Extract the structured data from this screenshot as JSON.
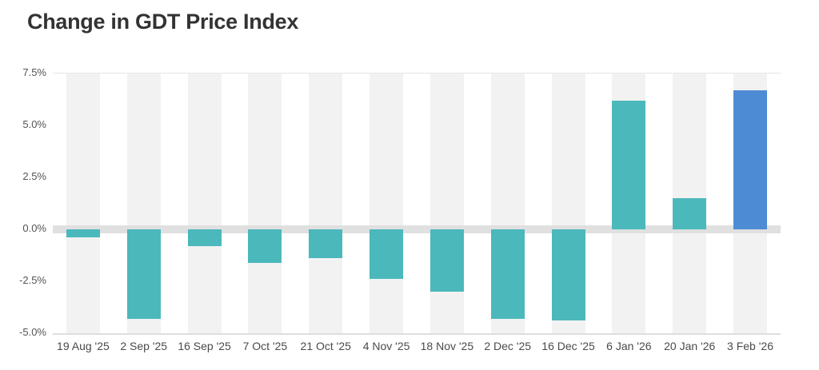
{
  "header": {
    "title": "Change in GDT Price Index"
  },
  "chart_data": {
    "type": "bar",
    "title": "Change in GDT Price Index",
    "categories": [
      "19 Aug '25",
      "2 Sep '25",
      "16 Sep '25",
      "7 Oct '25",
      "21 Oct '25",
      "4 Nov '25",
      "18 Nov '25",
      "2 Dec '25",
      "16 Dec '25",
      "6 Jan '26",
      "20 Jan '26",
      "3 Feb '26"
    ],
    "values": [
      -0.4,
      -4.3,
      -0.8,
      -1.6,
      -1.4,
      -2.4,
      -3.0,
      -4.3,
      -4.4,
      6.2,
      1.5,
      6.7
    ],
    "unit": "%",
    "xlabel": "",
    "ylabel": "",
    "ylim": [
      -5.0,
      7.5
    ],
    "ytick_step": 2.5,
    "ytick_labels": [
      "7.5%",
      "5.0%",
      "2.5%",
      "0.0%",
      "-2.5%",
      "-5.0%"
    ],
    "grid": "no horizontal gridlines; alternating vertical column stripes; thick gray band at zero",
    "legend_position": "none",
    "highlight_index": 11,
    "colors": {
      "bar_default": "#4bb8bc",
      "bar_highlight": "#4e8bd5",
      "column_stripe": "#f2f2f2",
      "zero_band": "#e0e0e0",
      "plot_border": "#e7e7e7",
      "axis_label": "#545454",
      "title": "#333333"
    }
  }
}
